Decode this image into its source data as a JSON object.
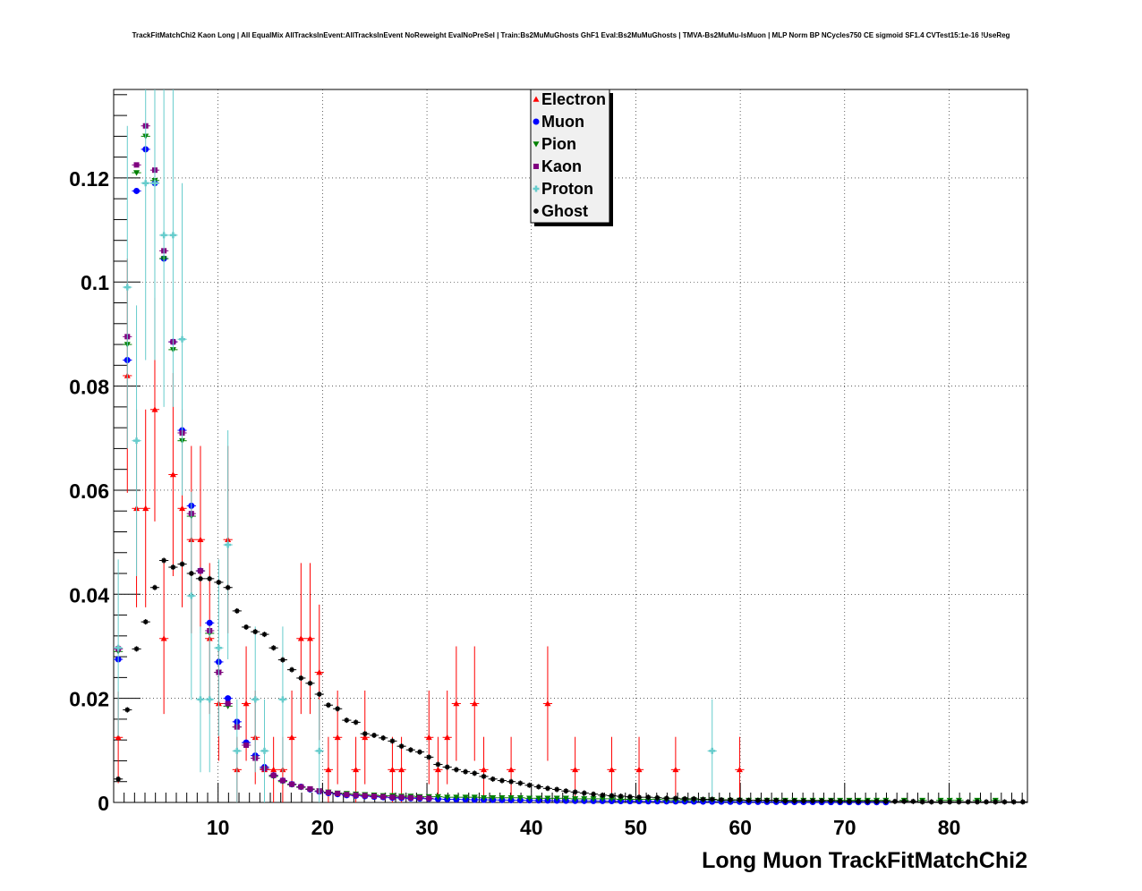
{
  "chart_data": {
    "type": "scatter",
    "title": "TrackFitMatchChi2 Kaon Long | All EqualMix AllTracksInEvent:AllTracksInEvent NoReweight EvalNoPreSel | Train:Bs2MuMuGhosts GhF1 Eval:Bs2MuMuGhosts | TMVA-Bs2MuMu-IsMuon | MLP Norm BP NCycles750 CE sigmoid SF1.4 CVTest15:1e-16 !UseReg",
    "xlabel": "Long Muon TrackFitMatchChi2",
    "ylabel": "",
    "xlim": [
      0,
      87.5
    ],
    "ylim": [
      0,
      0.137
    ],
    "xticks": [
      10,
      20,
      30,
      40,
      50,
      60,
      70,
      80
    ],
    "xtick_labels": [
      "10",
      "20",
      "30",
      "40",
      "50",
      "60",
      "70",
      "80"
    ],
    "yticks": [
      0,
      0.02,
      0.04,
      0.06,
      0.08,
      0.1,
      0.12
    ],
    "ytick_labels": [
      "0",
      "0.02",
      "0.04",
      "0.06",
      "0.08",
      "0.1",
      "0.12"
    ],
    "grid": true,
    "legend_position": "top-center",
    "bin_width": 0.875,
    "series": [
      {
        "name": "Electron",
        "color": "#ff0000",
        "marker": "triangle-up",
        "x": [
          0.44,
          1.31,
          2.19,
          3.06,
          3.94,
          4.81,
          5.69,
          6.56,
          7.44,
          8.31,
          9.19,
          10.06,
          10.94,
          11.81,
          12.69,
          13.56,
          14.44,
          15.31,
          16.19,
          17.06,
          17.94,
          18.81,
          19.69,
          20.56,
          21.44,
          23.19,
          24.06,
          26.69,
          27.56,
          30.19,
          31.06,
          31.94,
          32.81,
          34.56,
          35.44,
          38.06,
          41.56,
          44.19,
          47.69,
          50.31,
          53.81,
          59.94
        ],
        "y": [
          0.0125,
          0.082,
          0.0565,
          0.0565,
          0.0755,
          0.0315,
          0.063,
          0.0565,
          0.0505,
          0.0505,
          0.0315,
          0.019,
          0.0505,
          0.0063,
          0.019,
          0.0125,
          0.0063,
          0.0063,
          0.0063,
          0.0125,
          0.0315,
          0.0315,
          0.025,
          0.0063,
          0.0125,
          0.0063,
          0.0125,
          0.0063,
          0.0063,
          0.0125,
          0.0063,
          0.0125,
          0.019,
          0.019,
          0.0063,
          0.0063,
          0.019,
          0.0063,
          0.0063,
          0.0063,
          0.0063,
          0.0063
        ],
        "yerr": [
          0.0088,
          0.0225,
          0.019,
          0.019,
          0.0215,
          0.0145,
          0.0195,
          0.019,
          0.018,
          0.018,
          0.0145,
          0.011,
          0.018,
          0.0063,
          0.011,
          0.009,
          0.0063,
          0.0063,
          0.0063,
          0.009,
          0.0145,
          0.0145,
          0.013,
          0.0063,
          0.009,
          0.0063,
          0.009,
          0.0063,
          0.0063,
          0.009,
          0.0063,
          0.009,
          0.011,
          0.011,
          0.0063,
          0.0063,
          0.011,
          0.0063,
          0.0063,
          0.0063,
          0.0063,
          0.0063
        ]
      },
      {
        "name": "Muon",
        "color": "#0000ff",
        "marker": "circle",
        "x": [
          0.44,
          1.31,
          2.19,
          3.06,
          3.94,
          4.81,
          5.69,
          6.56,
          7.44,
          8.31,
          9.19,
          10.06,
          10.94,
          11.81,
          12.69,
          13.56,
          14.44,
          15.31,
          16.19,
          17.06,
          17.94,
          18.81,
          19.69,
          20.56,
          21.44,
          22.31,
          23.19,
          24.06,
          24.94,
          25.81,
          26.69,
          27.56,
          28.44,
          29.31,
          30.19,
          31.06,
          31.94,
          32.81,
          33.69,
          34.56,
          35.44,
          36.31,
          37.19,
          38.06,
          38.94,
          39.81,
          40.69,
          41.56,
          42.44,
          43.31,
          44.19,
          45.06,
          45.94,
          46.81,
          47.69,
          48.56,
          49.44,
          50.31,
          51.19,
          52.06,
          52.94,
          53.81,
          54.69,
          55.56,
          56.44,
          57.31,
          58.19,
          59.06,
          59.94,
          60.81,
          61.69,
          62.56,
          63.44,
          64.31,
          65.19,
          66.06,
          66.94,
          67.81,
          68.69,
          69.56,
          70.44,
          71.31,
          72.19,
          73.06,
          73.94
        ],
        "y": [
          0.0275,
          0.085,
          0.1175,
          0.1255,
          0.119,
          0.1045,
          0.0885,
          0.0715,
          0.057,
          0.0445,
          0.0345,
          0.027,
          0.02,
          0.0155,
          0.0115,
          0.009,
          0.0068,
          0.0052,
          0.0042,
          0.0035,
          0.003,
          0.0025,
          0.0021,
          0.0018,
          0.0016,
          0.0014,
          0.0013,
          0.0012,
          0.0011,
          0.001,
          0.0009,
          0.00085,
          0.0008,
          0.00075,
          0.0007,
          0.00065,
          0.0006,
          0.00058,
          0.00055,
          0.00052,
          0.0005,
          0.00048,
          0.00046,
          0.00044,
          0.00042,
          0.0004,
          0.00038,
          0.00036,
          0.00034,
          0.00032,
          0.0003,
          0.00029,
          0.00028,
          0.00027,
          0.00026,
          0.00025,
          0.00024,
          0.00023,
          0.00022,
          0.00021,
          0.0002,
          0.00019,
          0.00018,
          0.00017,
          0.00016,
          0.00015,
          0.00014,
          0.00013,
          0.00012,
          0.00011,
          0.0001,
          0.0001,
          0.0001,
          9e-05,
          9e-05,
          8e-05,
          8e-05,
          7e-05,
          7e-05,
          6e-05,
          6e-05,
          5e-05,
          5e-05,
          5e-05,
          4e-05
        ]
      },
      {
        "name": "Pion",
        "color": "#008000",
        "marker": "triangle-down",
        "x": [
          0.44,
          1.31,
          2.19,
          3.06,
          3.94,
          4.81,
          5.69,
          6.56,
          7.44,
          8.31,
          9.19,
          10.06,
          10.94,
          11.81,
          12.69,
          13.56,
          14.44,
          15.31,
          16.19,
          17.06,
          17.94,
          18.81,
          19.69,
          20.56,
          21.44,
          22.31,
          23.19,
          24.06,
          24.94,
          25.81,
          26.69,
          27.56,
          28.44,
          29.31,
          30.19,
          31.06,
          31.94,
          32.81,
          33.69,
          34.56,
          35.44,
          36.31,
          37.19,
          38.06,
          38.94,
          39.81,
          40.69,
          41.56,
          42.44,
          43.31,
          44.19,
          45.06,
          45.94,
          46.81,
          47.69,
          48.56,
          49.44,
          50.31,
          51.19,
          52.06,
          52.94,
          53.81,
          54.69,
          55.56,
          56.44,
          57.31,
          58.19,
          59.06,
          59.94,
          60.81,
          61.69,
          62.56,
          63.44,
          64.31,
          65.19,
          66.06,
          66.94,
          67.81,
          68.69,
          69.56,
          70.44,
          71.31,
          72.19,
          73.06,
          73.94,
          75.69,
          77.44,
          79.19,
          80.06,
          80.94,
          82.69,
          84.44
        ],
        "y": [
          0.029,
          0.088,
          0.121,
          0.128,
          0.1195,
          0.1045,
          0.087,
          0.0695,
          0.055,
          0.0445,
          0.0325,
          0.025,
          0.0185,
          0.0145,
          0.011,
          0.0085,
          0.0065,
          0.005,
          0.004,
          0.0034,
          0.0029,
          0.0025,
          0.0022,
          0.002,
          0.0018,
          0.0017,
          0.0016,
          0.0015,
          0.0014,
          0.0013,
          0.0013,
          0.0012,
          0.0012,
          0.0011,
          0.0011,
          0.0011,
          0.001,
          0.001,
          0.001,
          0.001,
          0.0009,
          0.0009,
          0.0009,
          0.0009,
          0.0009,
          0.0008,
          0.0008,
          0.0008,
          0.0008,
          0.0008,
          0.0007,
          0.0007,
          0.0007,
          0.0007,
          0.0007,
          0.0006,
          0.0006,
          0.0006,
          0.0006,
          0.0006,
          0.0005,
          0.0005,
          0.0005,
          0.0005,
          0.0005,
          0.0005,
          0.0004,
          0.0004,
          0.0004,
          0.0004,
          0.0004,
          0.0004,
          0.0004,
          0.0004,
          0.0004,
          0.0004,
          0.0004,
          0.0004,
          0.0004,
          0.0004,
          0.0004,
          0.0004,
          0.0004,
          0.0004,
          0.0004,
          0.0004,
          0.0004,
          0.0004,
          0.0004,
          0.0004,
          0.0004,
          0.0004
        ]
      },
      {
        "name": "Kaon",
        "color": "#800080",
        "marker": "square",
        "x": [
          0.44,
          1.31,
          2.19,
          3.06,
          3.94,
          4.81,
          5.69,
          6.56,
          7.44,
          8.31,
          9.19,
          10.06,
          10.94,
          11.81,
          12.69,
          13.56,
          14.44,
          15.31,
          16.19,
          17.06,
          17.94,
          18.81,
          19.69,
          20.56,
          21.44,
          22.31,
          23.19,
          24.06,
          24.94,
          25.81,
          26.69,
          27.56,
          28.44,
          29.31,
          30.19
        ],
        "y": [
          0.0295,
          0.0895,
          0.1225,
          0.13,
          0.1215,
          0.106,
          0.0885,
          0.071,
          0.0555,
          0.0445,
          0.033,
          0.025,
          0.019,
          0.0145,
          0.011,
          0.0085,
          0.0065,
          0.0052,
          0.0042,
          0.0035,
          0.003,
          0.0026,
          0.0022,
          0.0019,
          0.0017,
          0.0015,
          0.0014,
          0.0013,
          0.0012,
          0.0011,
          0.001,
          0.001,
          0.0009,
          0.0009,
          0.0008
        ]
      },
      {
        "name": "Proton",
        "color": "#66cccc",
        "marker": "cross",
        "x": [
          0.44,
          1.31,
          2.19,
          3.06,
          3.94,
          4.81,
          5.69,
          6.56,
          7.44,
          8.31,
          9.19,
          10.06,
          10.94,
          11.81,
          13.56,
          14.44,
          16.19,
          19.69,
          57.31
        ],
        "y": [
          0.0297,
          0.099,
          0.0695,
          0.119,
          0.119,
          0.109,
          0.109,
          0.089,
          0.0397,
          0.0198,
          0.0198,
          0.0297,
          0.0495,
          0.0099,
          0.0198,
          0.0099,
          0.0198,
          0.0099,
          0.0099
        ],
        "yerr": [
          0.017,
          0.031,
          0.026,
          0.034,
          0.034,
          0.033,
          0.033,
          0.03,
          0.02,
          0.014,
          0.014,
          0.017,
          0.022,
          0.0099,
          0.014,
          0.0099,
          0.014,
          0.0099,
          0.0099
        ]
      },
      {
        "name": "Ghost",
        "color": "#000000",
        "marker": "star",
        "x": [
          0.44,
          1.31,
          2.19,
          3.06,
          3.94,
          4.81,
          5.69,
          6.56,
          7.44,
          8.31,
          9.19,
          10.06,
          10.94,
          11.81,
          12.69,
          13.56,
          14.44,
          15.31,
          16.19,
          17.06,
          17.94,
          18.81,
          19.69,
          20.56,
          21.44,
          22.31,
          23.19,
          24.06,
          24.94,
          25.81,
          26.69,
          27.56,
          28.44,
          29.31,
          30.19,
          31.06,
          31.94,
          32.81,
          33.69,
          34.56,
          35.44,
          36.31,
          37.19,
          38.06,
          38.94,
          39.81,
          40.69,
          41.56,
          42.44,
          43.31,
          44.19,
          45.06,
          45.94,
          46.81,
          47.69,
          48.56,
          49.44,
          50.31,
          51.19,
          52.06,
          52.94,
          53.81,
          54.69,
          55.56,
          56.44,
          57.31,
          58.19,
          59.06,
          59.94,
          60.81,
          61.69,
          62.56,
          63.44,
          64.31,
          65.19,
          66.06,
          66.94,
          67.81,
          68.69,
          69.56,
          70.44,
          71.31,
          72.19,
          73.06,
          73.94,
          74.81,
          75.69,
          76.56,
          77.44,
          78.31,
          79.19,
          80.06,
          80.94,
          81.81,
          82.69,
          83.56,
          84.44,
          85.31,
          86.19,
          87.06
        ],
        "y": [
          0.0045,
          0.0178,
          0.0295,
          0.0347,
          0.0413,
          0.0465,
          0.0452,
          0.0458,
          0.044,
          0.043,
          0.043,
          0.0423,
          0.0413,
          0.0368,
          0.0337,
          0.0328,
          0.0323,
          0.0297,
          0.0274,
          0.0255,
          0.0239,
          0.0229,
          0.0208,
          0.0187,
          0.018,
          0.0158,
          0.0154,
          0.0132,
          0.0129,
          0.0124,
          0.0118,
          0.0108,
          0.0101,
          0.0097,
          0.0087,
          0.0073,
          0.0068,
          0.0063,
          0.0059,
          0.0056,
          0.005,
          0.0045,
          0.0042,
          0.004,
          0.0037,
          0.0033,
          0.003,
          0.0027,
          0.0025,
          0.0022,
          0.002,
          0.0018,
          0.0016,
          0.0014,
          0.0013,
          0.0012,
          0.0011,
          0.001,
          0.001,
          0.0009,
          0.0008,
          0.0008,
          0.0007,
          0.0007,
          0.0006,
          0.0006,
          0.0005,
          0.0005,
          0.0005,
          0.0004,
          0.0004,
          0.0004,
          0.0004,
          0.0003,
          0.0003,
          0.0003,
          0.0003,
          0.0003,
          0.0003,
          0.0002,
          0.0002,
          0.0002,
          0.0002,
          0.0002,
          0.0002,
          0.0002,
          0.0002,
          0.0002,
          0.0001,
          0.0001,
          0.0001,
          0.0001,
          0.0001,
          0.0001,
          0.0001,
          0.0001,
          0.0001,
          0.0001,
          0.0001,
          0.0001
        ]
      }
    ]
  }
}
